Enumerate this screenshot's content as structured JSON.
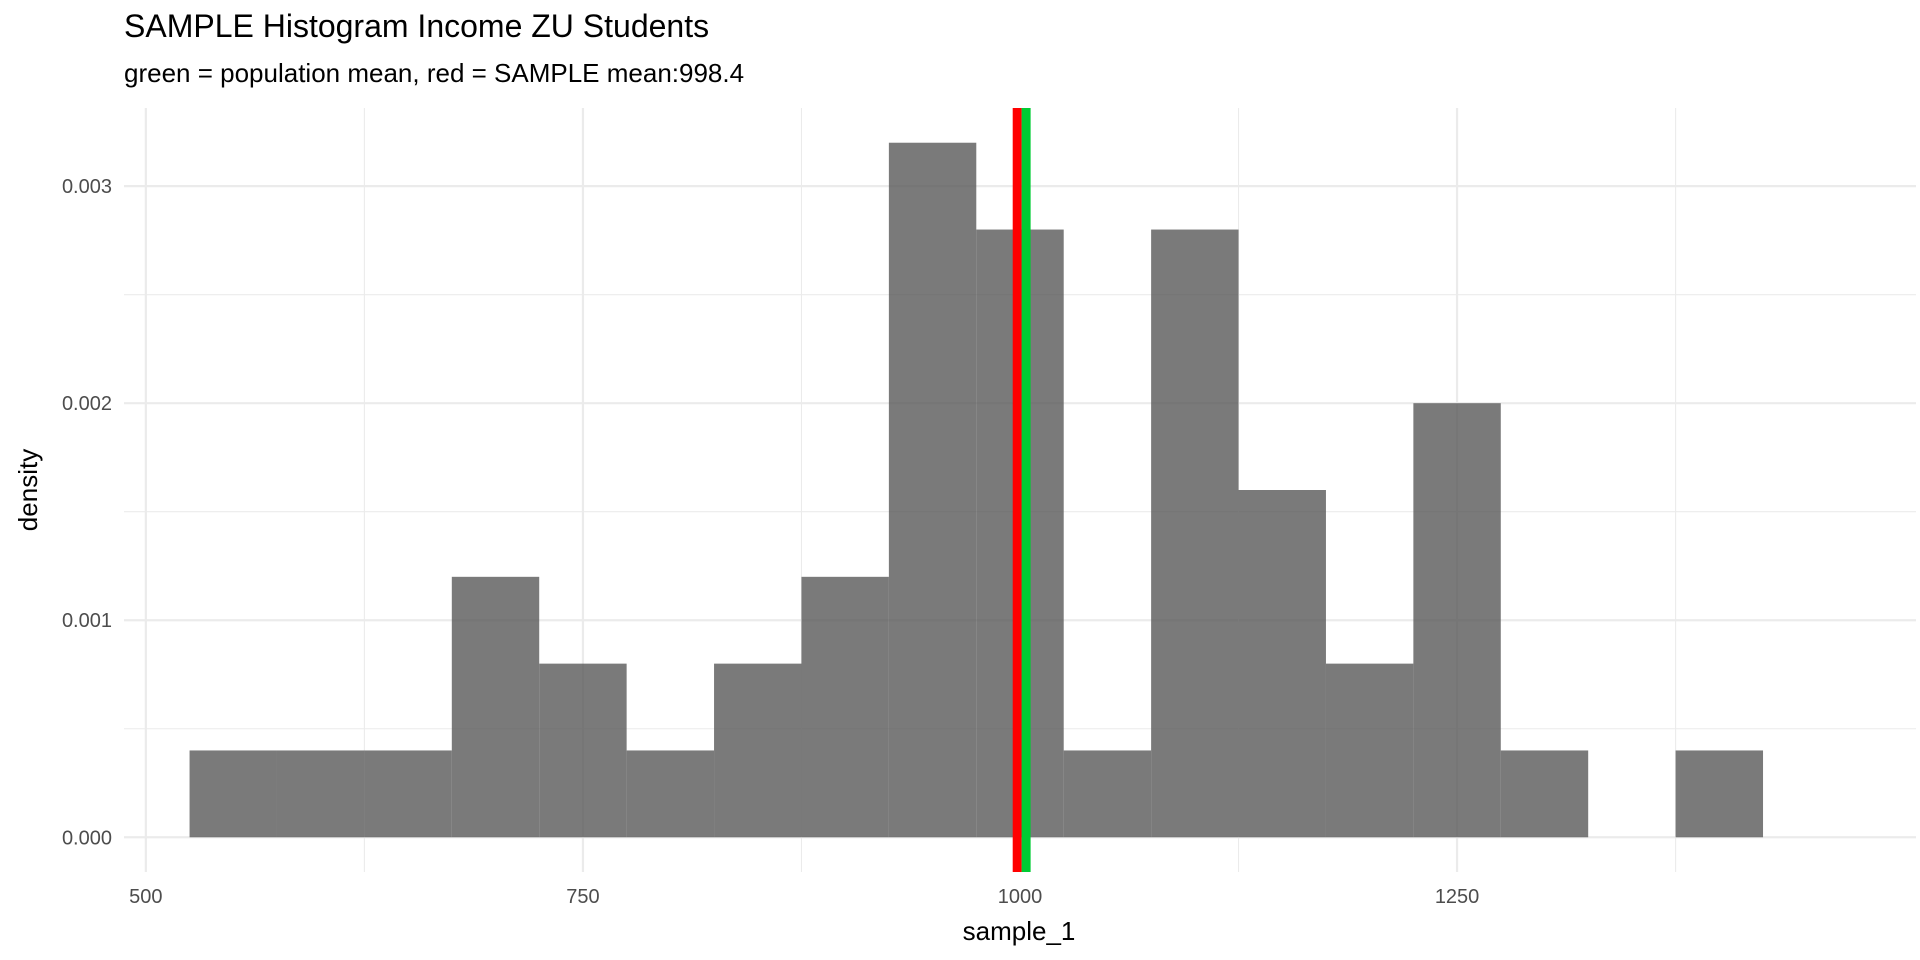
{
  "chart_data": {
    "type": "bar",
    "title": "SAMPLE Histogram Income ZU Students",
    "subtitle": "green = population mean, red = SAMPLE mean:998.4",
    "xlabel": "sample_1",
    "ylabel": "density",
    "xlim": [
      487.5,
      1512.5
    ],
    "ylim": [
      -0.00016,
      0.00336
    ],
    "x_ticks": [
      500,
      750,
      1000,
      1250
    ],
    "y_ticks": [
      0.0,
      0.001,
      0.002,
      0.003
    ],
    "x_tick_labels": [
      "500",
      "750",
      "1000",
      "1250"
    ],
    "y_tick_labels": [
      "0.000",
      "0.001",
      "0.002",
      "0.003"
    ],
    "bin_width": 50,
    "bins": [
      {
        "x0": 525,
        "x1": 575,
        "density": 0.0004
      },
      {
        "x0": 575,
        "x1": 625,
        "density": 0.0004
      },
      {
        "x0": 625,
        "x1": 675,
        "density": 0.0004
      },
      {
        "x0": 675,
        "x1": 725,
        "density": 0.0012
      },
      {
        "x0": 725,
        "x1": 775,
        "density": 0.0008
      },
      {
        "x0": 775,
        "x1": 825,
        "density": 0.0004
      },
      {
        "x0": 825,
        "x1": 875,
        "density": 0.0008
      },
      {
        "x0": 875,
        "x1": 925,
        "density": 0.0012
      },
      {
        "x0": 925,
        "x1": 975,
        "density": 0.0032
      },
      {
        "x0": 975,
        "x1": 1025,
        "density": 0.0028
      },
      {
        "x0": 1025,
        "x1": 1075,
        "density": 0.0004
      },
      {
        "x0": 1075,
        "x1": 1125,
        "density": 0.0028
      },
      {
        "x0": 1125,
        "x1": 1175,
        "density": 0.0016
      },
      {
        "x0": 1175,
        "x1": 1225,
        "density": 0.0008
      },
      {
        "x0": 1225,
        "x1": 1275,
        "density": 0.002
      },
      {
        "x0": 1275,
        "x1": 1325,
        "density": 0.0004
      },
      {
        "x0": 1325,
        "x1": 1375,
        "density": 0.0
      },
      {
        "x0": 1375,
        "x1": 1425,
        "density": 0.0004
      }
    ],
    "bar_color": "#595959",
    "bar_opacity": 0.8,
    "vlines": [
      {
        "name": "sample-mean",
        "x": 998.4,
        "color": "#ff0000"
      },
      {
        "name": "population-mean",
        "x": 1003.5,
        "color": "#00cc33"
      }
    ],
    "grid": true,
    "grid_color": "#ebebeb",
    "legend": "none"
  }
}
